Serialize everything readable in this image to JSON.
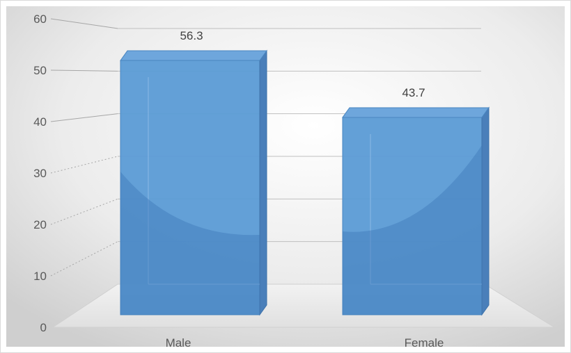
{
  "chart_data": {
    "type": "bar",
    "style": "3d-column",
    "categories": [
      "Male",
      "Female"
    ],
    "values": [
      56.3,
      43.7
    ],
    "data_labels": [
      "56.3",
      "43.7"
    ],
    "yticks": [
      "0",
      "10",
      "20",
      "30",
      "40",
      "50",
      "60"
    ],
    "ylim": [
      0,
      60
    ],
    "grid": true,
    "legend": "none",
    "title": "",
    "xlabel": "",
    "ylabel": "",
    "bar_color": "#5b9bd5"
  }
}
